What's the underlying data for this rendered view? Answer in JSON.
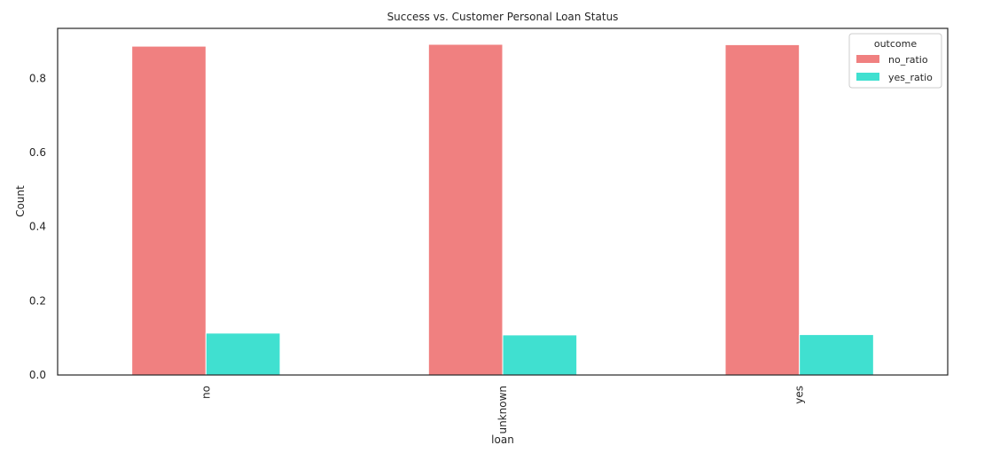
{
  "chart_data": {
    "type": "bar",
    "title": "Success vs. Customer Personal Loan Status",
    "xlabel": "loan",
    "ylabel": "Count",
    "categories": [
      "no",
      "unknown",
      "yes"
    ],
    "series": [
      {
        "name": "no_ratio",
        "values": [
          0.887,
          0.892,
          0.891
        ],
        "color": "#f08080"
      },
      {
        "name": "yes_ratio",
        "values": [
          0.113,
          0.108,
          0.109
        ],
        "color": "#40e0d0"
      }
    ],
    "ylim": [
      0,
      0.935
    ],
    "yticks": [
      0.0,
      0.2,
      0.4,
      0.6,
      0.8
    ],
    "ytick_labels": [
      "0.0",
      "0.2",
      "0.4",
      "0.6",
      "0.8"
    ],
    "grid": false,
    "legend": {
      "title": "outcome",
      "position": "top-right"
    }
  }
}
